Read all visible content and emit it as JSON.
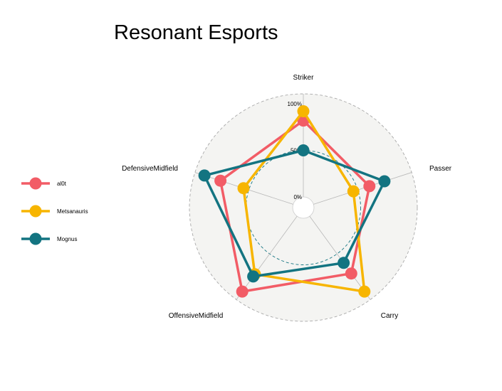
{
  "chart_data": {
    "type": "radar",
    "title": "Resonant Esports",
    "axes": [
      "Striker",
      "Passer",
      "Carry",
      "OffensiveMidfield",
      "DefensiveMidfield"
    ],
    "grid_labels": [
      "0%",
      "50%",
      "100%"
    ],
    "ylim": [
      0,
      100
    ],
    "series": [
      {
        "name": "al0t",
        "color": "#f25c66",
        "values": [
          82,
          63,
          76,
          100,
          82
        ]
      },
      {
        "name": "Metsanauris",
        "color": "#f7b500",
        "values": [
          92,
          45,
          100,
          77,
          56
        ]
      },
      {
        "name": "Mognus",
        "color": "#137481",
        "values": [
          50,
          80,
          62,
          80,
          100
        ]
      }
    ],
    "legend_position": "left"
  }
}
